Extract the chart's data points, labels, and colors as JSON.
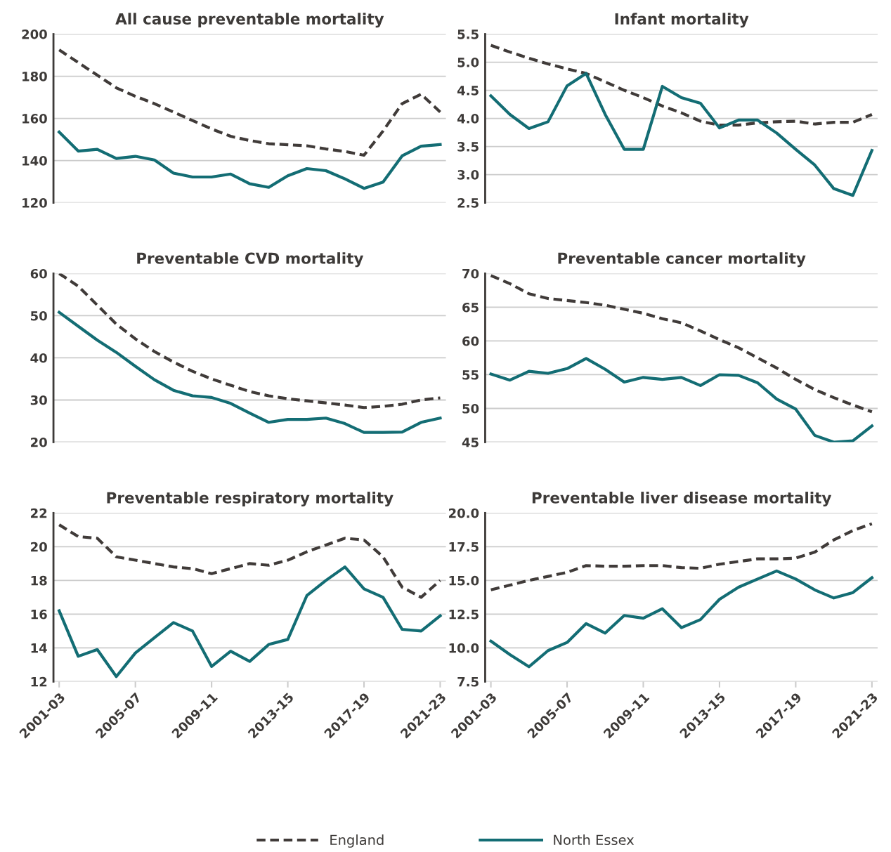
{
  "chart_data": [
    {
      "type": "line",
      "title": "All cause preventable mortality",
      "categories": [
        "2001-03",
        null,
        null,
        null,
        "2005-07",
        null,
        null,
        null,
        "2009-11",
        null,
        null,
        null,
        "2013-15",
        null,
        null,
        null,
        "2017-19",
        null,
        null,
        null,
        "2021-23"
      ],
      "tick_labels": "y",
      "grid": "y",
      "legend": "bottom",
      "ylim": [
        120,
        200
      ],
      "yticks": [
        120,
        140,
        160,
        180,
        200
      ],
      "series": [
        {
          "name": "England",
          "color": "#403b39",
          "line_style": "dashed",
          "values": [
            192.5,
            186.5,
            180.5,
            174.5,
            170.5,
            167,
            163,
            159,
            155,
            151.5,
            149.5,
            148,
            147.5,
            147,
            145.5,
            144.3,
            142.5,
            154,
            167,
            171.5,
            163
          ]
        },
        {
          "name": "North Essex",
          "color": "#136d74",
          "line_style": "solid",
          "values": [
            153.5,
            144.5,
            145.3,
            141,
            142,
            140.3,
            134,
            132.2,
            132.2,
            133.6,
            129,
            127.3,
            132.8,
            136.2,
            135.2,
            131.3,
            126.8,
            129.8,
            142.2,
            146.8,
            147.6
          ]
        }
      ]
    },
    {
      "type": "line",
      "title": "Infant mortality",
      "categories": [
        "2001-03",
        null,
        null,
        null,
        "2005-07",
        null,
        null,
        null,
        "2009-11",
        null,
        null,
        null,
        "2013-15",
        null,
        null,
        null,
        "2017-19",
        null,
        null,
        null,
        "2021-23"
      ],
      "tick_labels": "y",
      "grid": "y",
      "ylim": [
        2.5,
        5.5
      ],
      "yticks": [
        2.5,
        {
          "value": 3,
          "label": "3.0"
        },
        3.5,
        {
          "value": 4,
          "label": "4.0"
        },
        4.5,
        {
          "value": 5,
          "label": "5.0"
        },
        5.5
      ],
      "series": [
        {
          "name": "England",
          "color": "#403b39",
          "line_style": "dashed",
          "values": [
            5.3,
            5.18,
            5.07,
            4.97,
            4.88,
            4.8,
            4.65,
            4.5,
            4.37,
            4.22,
            4.1,
            3.95,
            3.88,
            3.88,
            3.92,
            3.94,
            3.95,
            3.9,
            3.93,
            3.93,
            4.07
          ]
        },
        {
          "name": "North Essex",
          "color": "#136d74",
          "line_style": "solid",
          "values": [
            4.4,
            4.07,
            3.82,
            3.94,
            4.58,
            4.8,
            4.07,
            3.45,
            3.45,
            4.57,
            4.37,
            4.27,
            3.83,
            3.97,
            3.97,
            3.74,
            3.45,
            3.17,
            2.75,
            2.63,
            3.43
          ]
        }
      ]
    },
    {
      "type": "line",
      "title": "Preventable CVD mortality",
      "categories": [
        "2001-03",
        null,
        null,
        null,
        "2005-07",
        null,
        null,
        null,
        "2009-11",
        null,
        null,
        null,
        "2013-15",
        null,
        null,
        null,
        "2017-19",
        null,
        null,
        null,
        "2021-23"
      ],
      "tick_labels": "y",
      "grid": "y",
      "ylim": [
        20,
        60
      ],
      "yticks": [
        20,
        30,
        40,
        50,
        60
      ],
      "series": [
        {
          "name": "England",
          "color": "#403b39",
          "line_style": "dashed",
          "values": [
            60,
            57,
            52.5,
            48,
            44.5,
            41.5,
            39,
            36.8,
            35,
            33.5,
            32,
            31,
            30.3,
            29.8,
            29.3,
            28.8,
            28.2,
            28.5,
            29,
            30,
            30.5
          ]
        },
        {
          "name": "North Essex",
          "color": "#136d74",
          "line_style": "solid",
          "values": [
            50.8,
            47.5,
            44.2,
            41.3,
            38,
            34.8,
            32.3,
            31,
            30.6,
            29.2,
            26.9,
            24.7,
            25.4,
            25.4,
            25.7,
            24.4,
            22.3,
            22.3,
            22.4,
            24.7,
            25.7
          ]
        }
      ]
    },
    {
      "type": "line",
      "title": "Preventable cancer mortality",
      "categories": [
        "2001-03",
        null,
        null,
        null,
        "2005-07",
        null,
        null,
        null,
        "2009-11",
        null,
        null,
        null,
        "2013-15",
        null,
        null,
        null,
        "2017-19",
        null,
        null,
        null,
        "2021-23"
      ],
      "tick_labels": "y",
      "grid": "y",
      "ylim": [
        45,
        70
      ],
      "yticks": [
        45,
        50,
        55,
        60,
        65,
        70
      ],
      "series": [
        {
          "name": "England",
          "color": "#403b39",
          "line_style": "dashed",
          "values": [
            69.7,
            68.5,
            67,
            66.3,
            66,
            65.7,
            65.3,
            64.7,
            64.1,
            63.3,
            62.7,
            61.5,
            60.2,
            59,
            57.5,
            56,
            54.3,
            52.8,
            51.6,
            50.5,
            49.5
          ]
        },
        {
          "name": "North Essex",
          "color": "#136d74",
          "line_style": "solid",
          "values": [
            55.1,
            54.2,
            55.5,
            55.2,
            55.9,
            57.4,
            55.8,
            53.9,
            54.6,
            54.3,
            54.6,
            53.4,
            55,
            54.9,
            53.8,
            51.4,
            49.9,
            46,
            45,
            45.2,
            47.4
          ]
        }
      ]
    },
    {
      "type": "line",
      "title": "Preventable respiratory mortality",
      "categories": [
        "2001-03",
        null,
        null,
        null,
        "2005-07",
        null,
        null,
        null,
        "2009-11",
        null,
        null,
        null,
        "2013-15",
        null,
        null,
        null,
        "2017-19",
        null,
        null,
        null,
        "2021-23"
      ],
      "grid": "y",
      "ylim": [
        12,
        22
      ],
      "yticks": [
        12,
        14,
        16,
        18,
        20,
        22
      ],
      "series": [
        {
          "name": "England",
          "color": "#403b39",
          "line_style": "dashed",
          "values": [
            21.3,
            20.6,
            20.5,
            19.4,
            19.2,
            19,
            18.8,
            18.7,
            18.4,
            18.7,
            19,
            18.9,
            19.2,
            19.7,
            20.1,
            20.5,
            20.4,
            19.4,
            17.6,
            17,
            18
          ]
        },
        {
          "name": "North Essex",
          "color": "#136d74",
          "line_style": "solid",
          "values": [
            16.2,
            13.5,
            13.9,
            12.3,
            13.7,
            14.6,
            15.5,
            15,
            12.9,
            13.8,
            13.2,
            14.2,
            14.5,
            17.1,
            18,
            18.8,
            17.5,
            17,
            15.1,
            15,
            15.9
          ]
        }
      ]
    },
    {
      "type": "line",
      "title": "Preventable liver disease mortality",
      "categories": [
        "2001-03",
        null,
        null,
        null,
        "2005-07",
        null,
        null,
        null,
        "2009-11",
        null,
        null,
        null,
        "2013-15",
        null,
        null,
        null,
        "2017-19",
        null,
        null,
        null,
        "2021-23"
      ],
      "grid": "y",
      "ylim": [
        7.5,
        20
      ],
      "yticks": [
        7.5,
        {
          "value": 10,
          "label": "10.0"
        },
        12.5,
        {
          "value": 15,
          "label": "15.0"
        },
        17.5,
        {
          "value": 20,
          "label": "20.0"
        }
      ],
      "series": [
        {
          "name": "England",
          "color": "#403b39",
          "line_style": "dashed",
          "values": [
            14.3,
            14.65,
            15.0,
            15.3,
            15.6,
            16.1,
            16.05,
            16.05,
            16.1,
            16.1,
            15.95,
            15.9,
            16.2,
            16.4,
            16.6,
            16.6,
            16.65,
            17.1,
            18.0,
            18.7,
            19.2
          ]
        },
        {
          "name": "North Essex",
          "color": "#136d74",
          "line_style": "solid",
          "values": [
            10.5,
            9.5,
            8.6,
            9.8,
            10.4,
            11.8,
            11.1,
            12.4,
            12.2,
            12.9,
            11.5,
            12.1,
            13.6,
            14.5,
            15.1,
            15.7,
            15.1,
            14.3,
            13.7,
            14.1,
            15.2
          ]
        }
      ]
    }
  ]
}
